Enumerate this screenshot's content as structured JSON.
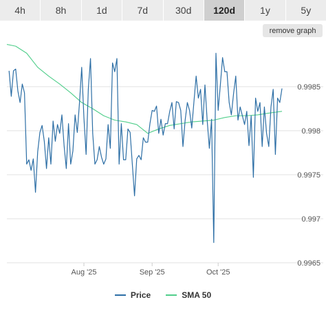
{
  "tabs": [
    {
      "label": "4h",
      "active": false
    },
    {
      "label": "8h",
      "active": false
    },
    {
      "label": "1d",
      "active": false
    },
    {
      "label": "7d",
      "active": false
    },
    {
      "label": "30d",
      "active": false
    },
    {
      "label": "120d",
      "active": true
    },
    {
      "label": "1y",
      "active": false
    },
    {
      "label": "5y",
      "active": false
    }
  ],
  "remove_graph_label": "remove graph",
  "colors": {
    "price": "#2c6ea5",
    "sma": "#4fce8a",
    "grid": "#e2e2e2"
  },
  "chart_data": {
    "type": "line",
    "x_start": "2025-06-27",
    "x_end": "2025-10-30",
    "ylim": [
      0.9965,
      0.999
    ],
    "yticks": [
      "0.9985",
      "0.998",
      "0.9975",
      "0.997",
      "0.9965"
    ],
    "xticks": [
      {
        "label": "Aug '25",
        "date": "2025-08-01"
      },
      {
        "label": "Sep '25",
        "date": "2025-09-01"
      },
      {
        "label": "Oct '25",
        "date": "2025-10-01"
      }
    ],
    "legend": {
      "position": "bottom"
    },
    "series": [
      {
        "name": "Price",
        "color": "#2c6ea5",
        "points": [
          [
            "2025-06-28",
            0.99868
          ],
          [
            "2025-06-29",
            0.99839
          ],
          [
            "2025-06-30",
            0.99868
          ],
          [
            "2025-07-01",
            0.9987
          ],
          [
            "2025-07-02",
            0.99845
          ],
          [
            "2025-07-03",
            0.99832
          ],
          [
            "2025-07-04",
            0.99853
          ],
          [
            "2025-07-05",
            0.99843
          ],
          [
            "2025-07-06",
            0.99762
          ],
          [
            "2025-07-07",
            0.99767
          ],
          [
            "2025-07-08",
            0.99755
          ],
          [
            "2025-07-09",
            0.99768
          ],
          [
            "2025-07-10",
            0.9973
          ],
          [
            "2025-07-11",
            0.99776
          ],
          [
            "2025-07-12",
            0.99798
          ],
          [
            "2025-07-13",
            0.99806
          ],
          [
            "2025-07-14",
            0.99788
          ],
          [
            "2025-07-15",
            0.99757
          ],
          [
            "2025-07-16",
            0.99792
          ],
          [
            "2025-07-17",
            0.99762
          ],
          [
            "2025-07-18",
            0.99811
          ],
          [
            "2025-07-19",
            0.99788
          ],
          [
            "2025-07-20",
            0.99807
          ],
          [
            "2025-07-21",
            0.99797
          ],
          [
            "2025-07-22",
            0.99818
          ],
          [
            "2025-07-23",
            0.99783
          ],
          [
            "2025-07-24",
            0.99757
          ],
          [
            "2025-07-25",
            0.99808
          ],
          [
            "2025-07-26",
            0.99762
          ],
          [
            "2025-07-27",
            0.99777
          ],
          [
            "2025-07-28",
            0.99818
          ],
          [
            "2025-07-29",
            0.99798
          ],
          [
            "2025-07-30",
            0.99832
          ],
          [
            "2025-07-31",
            0.99872
          ],
          [
            "2025-08-01",
            0.99815
          ],
          [
            "2025-08-02",
            0.99773
          ],
          [
            "2025-08-03",
            0.99847
          ],
          [
            "2025-08-04",
            0.99882
          ],
          [
            "2025-08-05",
            0.99797
          ],
          [
            "2025-08-06",
            0.99762
          ],
          [
            "2025-08-07",
            0.99767
          ],
          [
            "2025-08-08",
            0.99782
          ],
          [
            "2025-08-09",
            0.9977
          ],
          [
            "2025-08-10",
            0.99762
          ],
          [
            "2025-08-11",
            0.99768
          ],
          [
            "2025-08-12",
            0.99807
          ],
          [
            "2025-08-13",
            0.9978
          ],
          [
            "2025-08-14",
            0.99877
          ],
          [
            "2025-08-15",
            0.99867
          ],
          [
            "2025-08-16",
            0.99882
          ],
          [
            "2025-08-17",
            0.99762
          ],
          [
            "2025-08-18",
            0.99808
          ],
          [
            "2025-08-19",
            0.99767
          ],
          [
            "2025-08-20",
            0.99767
          ],
          [
            "2025-08-21",
            0.99802
          ],
          [
            "2025-08-22",
            0.99798
          ],
          [
            "2025-08-23",
            0.99762
          ],
          [
            "2025-08-24",
            0.99726
          ],
          [
            "2025-08-25",
            0.99768
          ],
          [
            "2025-08-26",
            0.99772
          ],
          [
            "2025-08-27",
            0.99767
          ],
          [
            "2025-08-28",
            0.99792
          ],
          [
            "2025-08-29",
            0.99787
          ],
          [
            "2025-08-30",
            0.99787
          ],
          [
            "2025-08-31",
            0.99808
          ],
          [
            "2025-09-01",
            0.99823
          ],
          [
            "2025-09-02",
            0.99822
          ],
          [
            "2025-09-03",
            0.99828
          ],
          [
            "2025-09-04",
            0.99797
          ],
          [
            "2025-09-05",
            0.99813
          ],
          [
            "2025-09-06",
            0.99795
          ],
          [
            "2025-09-07",
            0.99808
          ],
          [
            "2025-09-08",
            0.99808
          ],
          [
            "2025-09-09",
            0.99822
          ],
          [
            "2025-09-10",
            0.99832
          ],
          [
            "2025-09-11",
            0.99802
          ],
          [
            "2025-09-12",
            0.99833
          ],
          [
            "2025-09-13",
            0.99832
          ],
          [
            "2025-09-14",
            0.99823
          ],
          [
            "2025-09-15",
            0.99782
          ],
          [
            "2025-09-16",
            0.99812
          ],
          [
            "2025-09-17",
            0.99832
          ],
          [
            "2025-09-18",
            0.99823
          ],
          [
            "2025-09-19",
            0.99803
          ],
          [
            "2025-09-20",
            0.99833
          ],
          [
            "2025-09-21",
            0.99862
          ],
          [
            "2025-09-22",
            0.99837
          ],
          [
            "2025-09-23",
            0.99847
          ],
          [
            "2025-09-24",
            0.99807
          ],
          [
            "2025-09-25",
            0.99852
          ],
          [
            "2025-09-26",
            0.99812
          ],
          [
            "2025-09-27",
            0.9978
          ],
          [
            "2025-09-28",
            0.99813
          ],
          [
            "2025-09-29",
            0.99673
          ],
          [
            "2025-09-30",
            0.99888
          ],
          [
            "2025-10-01",
            0.99823
          ],
          [
            "2025-10-02",
            0.99852
          ],
          [
            "2025-10-03",
            0.99883
          ],
          [
            "2025-10-04",
            0.99867
          ],
          [
            "2025-10-05",
            0.99867
          ],
          [
            "2025-10-06",
            0.99832
          ],
          [
            "2025-10-07",
            0.99818
          ],
          [
            "2025-10-08",
            0.99842
          ],
          [
            "2025-10-09",
            0.99862
          ],
          [
            "2025-10-10",
            0.99812
          ],
          [
            "2025-10-11",
            0.99827
          ],
          [
            "2025-10-12",
            0.99817
          ],
          [
            "2025-10-13",
            0.99807
          ],
          [
            "2025-10-14",
            0.99822
          ],
          [
            "2025-10-15",
            0.99783
          ],
          [
            "2025-10-16",
            0.99817
          ],
          [
            "2025-10-17",
            0.99747
          ],
          [
            "2025-10-18",
            0.99837
          ],
          [
            "2025-10-19",
            0.99822
          ],
          [
            "2025-10-20",
            0.99832
          ],
          [
            "2025-10-21",
            0.99782
          ],
          [
            "2025-10-22",
            0.99827
          ],
          [
            "2025-10-23",
            0.99797
          ],
          [
            "2025-10-24",
            0.99782
          ],
          [
            "2025-10-25",
            0.99827
          ],
          [
            "2025-10-26",
            0.99847
          ],
          [
            "2025-10-27",
            0.99773
          ],
          [
            "2025-10-28",
            0.99837
          ],
          [
            "2025-10-29",
            0.99832
          ],
          [
            "2025-10-30",
            0.99848
          ]
        ]
      },
      {
        "name": "SMA 50",
        "color": "#4fce8a",
        "points": [
          [
            "2025-06-27",
            0.99898
          ],
          [
            "2025-07-01",
            0.99896
          ],
          [
            "2025-07-06",
            0.99888
          ],
          [
            "2025-07-11",
            0.99872
          ],
          [
            "2025-07-16",
            0.99862
          ],
          [
            "2025-07-21",
            0.99853
          ],
          [
            "2025-07-26",
            0.99843
          ],
          [
            "2025-07-31",
            0.99832
          ],
          [
            "2025-08-05",
            0.99825
          ],
          [
            "2025-08-10",
            0.99817
          ],
          [
            "2025-08-15",
            0.99812
          ],
          [
            "2025-08-20",
            0.9981
          ],
          [
            "2025-08-25",
            0.99807
          ],
          [
            "2025-08-30",
            0.99797
          ],
          [
            "2025-09-04",
            0.99802
          ],
          [
            "2025-09-09",
            0.99806
          ],
          [
            "2025-09-14",
            0.99808
          ],
          [
            "2025-09-19",
            0.9981
          ],
          [
            "2025-09-24",
            0.99811
          ],
          [
            "2025-09-29",
            0.99812
          ],
          [
            "2025-10-04",
            0.99815
          ],
          [
            "2025-10-09",
            0.99817
          ],
          [
            "2025-10-14",
            0.99817
          ],
          [
            "2025-10-19",
            0.99818
          ],
          [
            "2025-10-24",
            0.9982
          ],
          [
            "2025-10-30",
            0.99822
          ]
        ]
      }
    ]
  }
}
